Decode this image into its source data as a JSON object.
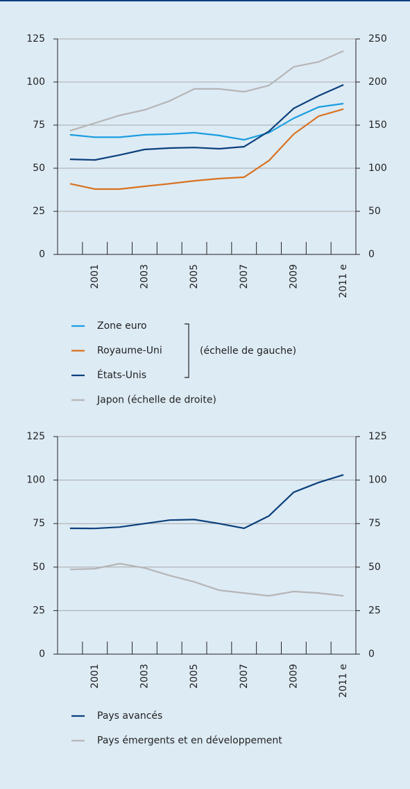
{
  "chart_data": [
    {
      "type": "line",
      "categories": [
        null,
        "2001",
        null,
        "2003",
        null,
        "2005",
        null,
        "2007",
        null,
        "2009",
        null,
        "2011 e"
      ],
      "ylim": [
        0,
        125
      ],
      "yticks": [
        0,
        25,
        50,
        75,
        100,
        125
      ],
      "y2lim": [
        0,
        250
      ],
      "y2ticks": [
        0,
        50,
        100,
        150,
        200,
        250
      ],
      "grid": true,
      "annotation": "(échelle de gauche)",
      "series": [
        {
          "name": "Zone euro",
          "color": "#1a9ee0",
          "values": [
            69.4,
            68,
            68,
            69.4,
            69.8,
            70.6,
            69,
            66.5,
            70.6,
            79,
            85.5,
            87.5
          ]
        },
        {
          "name": "Royaume-Uni",
          "color": "#d9711f",
          "values": [
            41,
            37.9,
            37.9,
            39.5,
            41,
            42.7,
            44,
            44.8,
            54.4,
            69.8,
            80.2,
            84.3
          ]
        },
        {
          "name": "États-Unis",
          "color": "#0b3f7c",
          "values": [
            55.2,
            54.8,
            57.7,
            60.9,
            61.7,
            62,
            61.3,
            62.5,
            71.4,
            84.7,
            92,
            98.4
          ]
        },
        {
          "name": "Japon (échelle de droite)",
          "color": "#b5b5b5",
          "axis": "y2",
          "values": [
            143.5,
            152.4,
            161.3,
            167.7,
            178,
            192,
            192,
            188.7,
            196,
            217.7,
            223.4,
            236
          ]
        }
      ]
    },
    {
      "type": "line",
      "categories": [
        null,
        "2001",
        null,
        "2003",
        null,
        "2005",
        null,
        "2007",
        null,
        "2009",
        null,
        "2011 e"
      ],
      "ylim": [
        0,
        125
      ],
      "yticks": [
        0,
        25,
        50,
        75,
        100,
        125
      ],
      "y2lim": [
        0,
        125
      ],
      "y2ticks": [
        0,
        25,
        50,
        75,
        100,
        125
      ],
      "grid": true,
      "series": [
        {
          "name": "Pays avancés",
          "color": "#0b3f7c",
          "values": [
            72.3,
            72.2,
            73,
            75,
            77,
            77.3,
            75,
            72.3,
            79.4,
            93,
            98.6,
            103
          ]
        },
        {
          "name": "Pays émergents et en développement",
          "color": "#b5b5b5",
          "values": [
            48.7,
            49.1,
            52,
            49.5,
            45.2,
            41.5,
            36.7,
            35.1,
            33.5,
            36,
            35.1,
            33.5
          ]
        }
      ]
    }
  ]
}
